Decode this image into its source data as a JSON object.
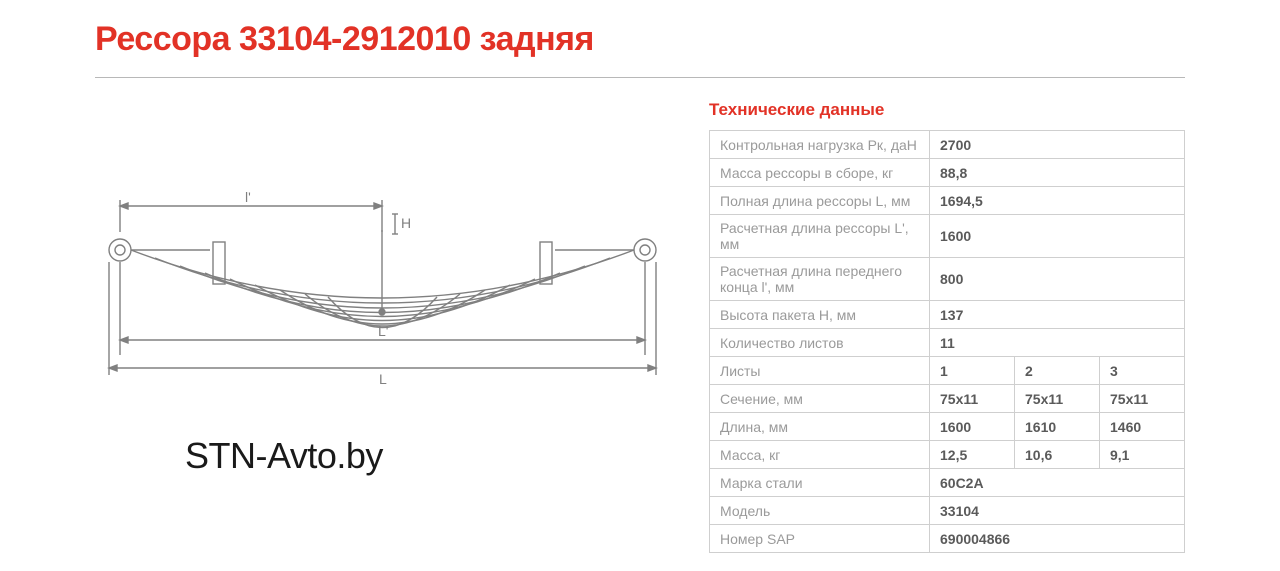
{
  "title": "Рессора 33104-2912010 задняя",
  "watermark": "STN-Avto.by",
  "spec_title": "Технические данные",
  "diagram": {
    "stroke": "#808080",
    "labels": {
      "l_prime_top": "l'",
      "H": "H",
      "L_prime": "L'",
      "L": "L"
    }
  },
  "rows_simple": [
    {
      "label": "Контрольная нагрузка Рк, даН",
      "value": "2700"
    },
    {
      "label": "Масса рессоры в сборе, кг",
      "value": "88,8"
    },
    {
      "label": "Полная длина рессоры L, мм",
      "value": "1694,5"
    },
    {
      "label": "Расчетная длина рессоры L', мм",
      "value": "1600"
    },
    {
      "label": "Расчетная длина переднего конца l', мм",
      "value": "800"
    },
    {
      "label": "Высота пакета Н, мм",
      "value": "137"
    },
    {
      "label": "Количество листов",
      "value": "11"
    }
  ],
  "rows_multi": [
    {
      "label": "Листы",
      "v1": "1",
      "v2": "2",
      "v3": "3"
    },
    {
      "label": "Сечение, мм",
      "v1": "75х11",
      "v2": "75х11",
      "v3": "75х11"
    },
    {
      "label": "Длина, мм",
      "v1": "1600",
      "v2": "1610",
      "v3": "1460"
    },
    {
      "label": "Масса, кг",
      "v1": "12,5",
      "v2": "10,6",
      "v3": "9,1"
    }
  ],
  "rows_tail": [
    {
      "label": "Марка стали",
      "value": "60С2А"
    },
    {
      "label": "Модель",
      "value": "33104"
    },
    {
      "label": "Номер SAP",
      "value": "690004866"
    }
  ]
}
